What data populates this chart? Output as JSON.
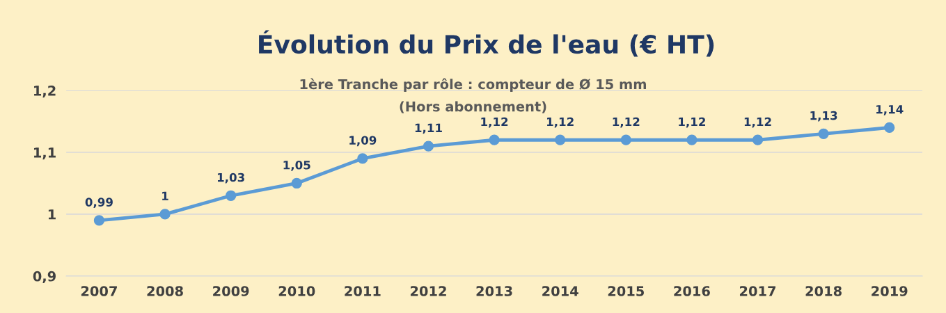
{
  "chart_data": {
    "type": "line",
    "title": "Évolution du Prix de l'eau (€ HT)",
    "subtitle": "1ère Tranche par rôle : compteur de Ø 15 mm\n(Hors abonnement)",
    "categories": [
      "2007",
      "2008",
      "2009",
      "2010",
      "2011",
      "2012",
      "2013",
      "2014",
      "2015",
      "2016",
      "2017",
      "2018",
      "2019"
    ],
    "series": [
      {
        "color": "#5b9bd5",
        "values": [
          0.99,
          1,
          1.03,
          1.05,
          1.09,
          1.11,
          1.12,
          1.12,
          1.12,
          1.12,
          1.12,
          1.13,
          1.14
        ],
        "value_labels": [
          "0,99",
          "1",
          "1,03",
          "1,05",
          "1,09",
          "1,11",
          "1,12",
          "1,12",
          "1,12",
          "1,12",
          "1,12",
          "1,13",
          "1,14"
        ]
      }
    ],
    "ylim": [
      0.9,
      1.2
    ],
    "yticks": [
      {
        "value": 0.9,
        "label": "0,9"
      },
      1,
      {
        "value": 1.1,
        "label": "1,1"
      },
      {
        "value": 1.2,
        "label": "1,2"
      }
    ],
    "grid": "y",
    "marker": "circle",
    "line_style": "solid",
    "legend": false
  }
}
